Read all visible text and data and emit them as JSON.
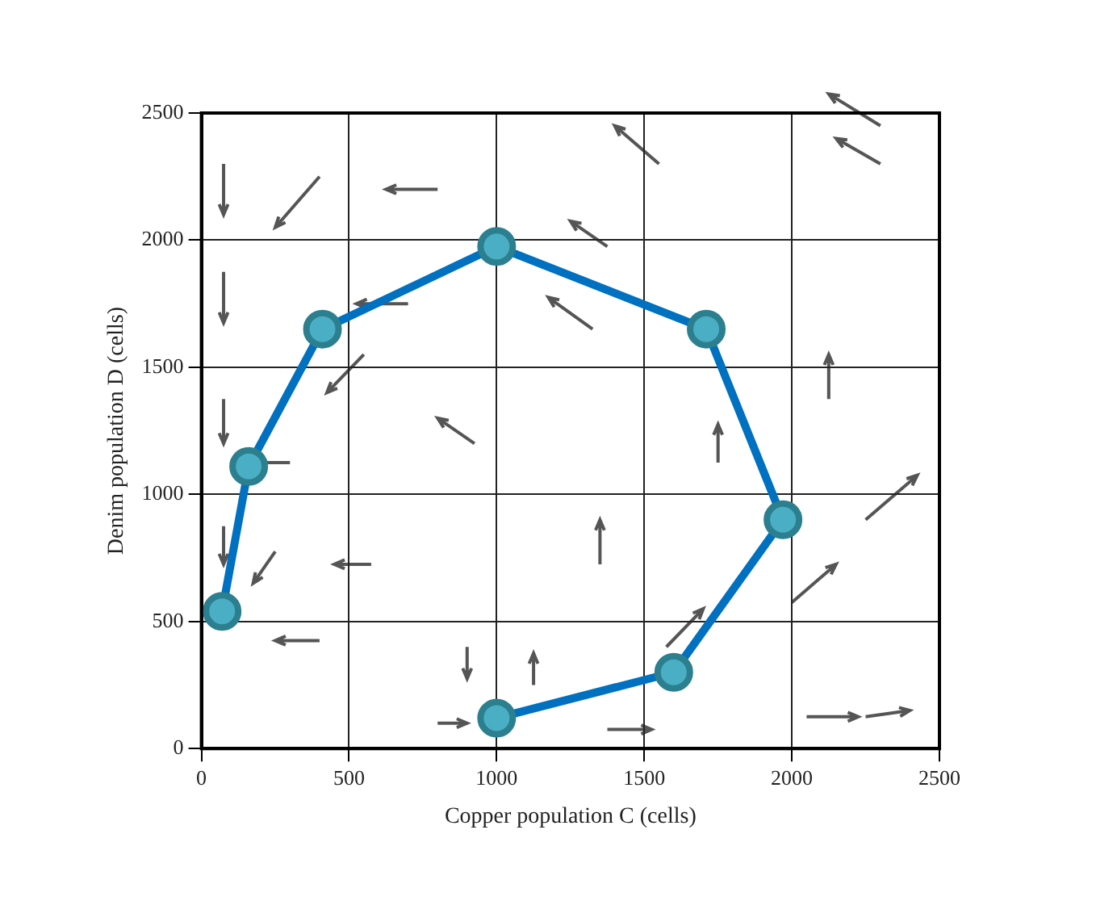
{
  "chart_data": {
    "type": "line",
    "xlabel": "Copper population C (cells)",
    "ylabel": "Denim population D (cells)",
    "xlim": [
      0,
      2500
    ],
    "ylim": [
      0,
      2500
    ],
    "xticks": [
      0,
      500,
      1000,
      1500,
      2000,
      2500
    ],
    "yticks": [
      0,
      500,
      1000,
      1500,
      2000,
      2500
    ],
    "grid": true,
    "marker": "circle",
    "line_style": "solid",
    "series": [
      {
        "color": "#0070c0",
        "x": [
          1000,
          1600,
          1970,
          1710,
          1000,
          410,
          160,
          70
        ],
        "values": [
          120,
          300,
          900,
          1650,
          1975,
          1650,
          1110,
          540
        ]
      }
    ]
  }
}
